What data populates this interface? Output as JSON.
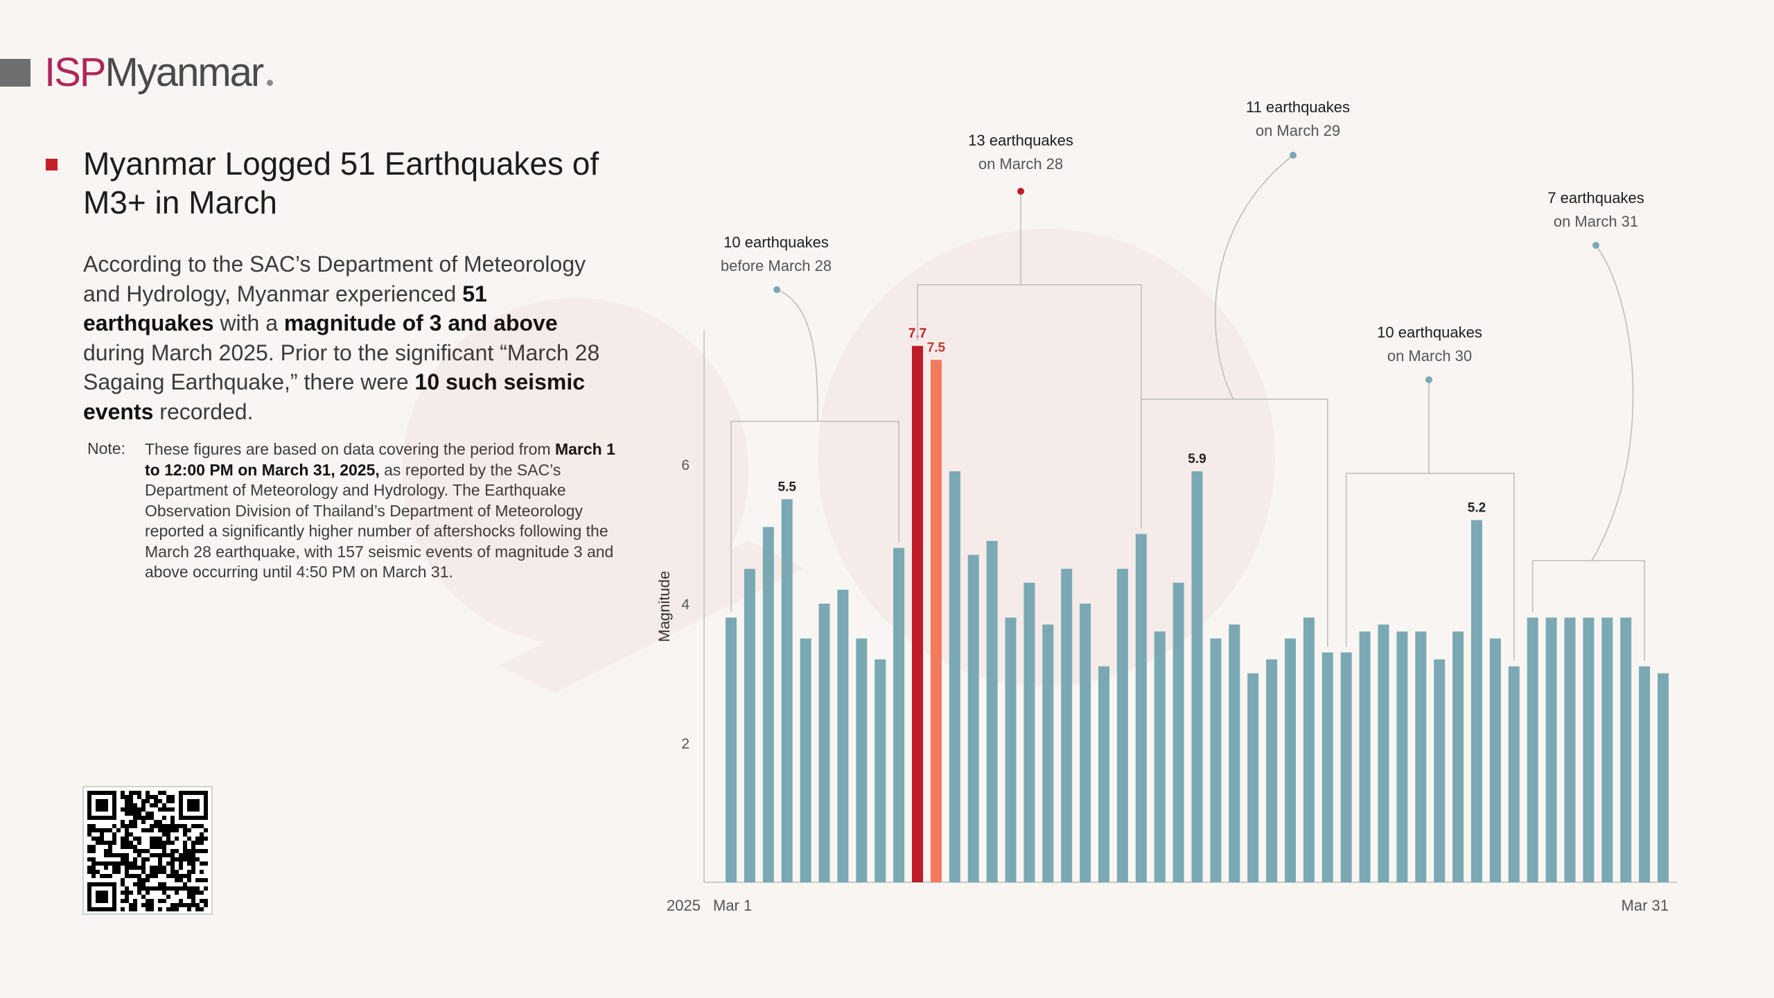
{
  "brand": {
    "isp": "ISP",
    "name": "Myanmar"
  },
  "headline": "Myanmar Logged 51 Earthquakes of M3+ in March",
  "lead": {
    "p1": "According to the SAC’s Department of Meteorology and Hydrology, Myanmar experienced ",
    "b1": "51 earthquakes",
    "p2": " with a ",
    "b2": "magnitude of 3 and above",
    "p3": " during March 2025. Prior to the significant “March 28 Sagaing Earthquake,” there were ",
    "b3": "10 such seismic events",
    "p4": " recorded."
  },
  "note": {
    "label": "Note:",
    "p1": "These figures are based on data covering the period from ",
    "b1": "March 1 to 12:00 PM on March 31, 2025,",
    "p2": " as reported by the SAC’s Department of Meteorology and Hydrology. The Earthquake Observation Division of Thailand’s Department of Meteorology reported a significantly higher number of aftershocks following the March 28 earthquake, with 157 seismic events of magnitude 3 and above occurring until 4:50 PM on March 31."
  },
  "colors": {
    "bar": "#7aa9b4",
    "main_quake": "#bf1d27",
    "aftershock_peak": "#f27a5e",
    "accent": "#c4202b",
    "brand": "#b0265c"
  },
  "chart_data": {
    "type": "bar",
    "ylabel": "Magnitude",
    "ylim": [
      0,
      8
    ],
    "yticks": [
      2,
      4,
      6
    ],
    "x_labels": {
      "year": "2025",
      "start": "Mar 1",
      "end": "Mar 31"
    },
    "grid": false,
    "values": [
      3.8,
      4.5,
      5.1,
      5.5,
      3.5,
      4.0,
      4.2,
      3.5,
      3.2,
      4.8,
      7.7,
      7.5,
      5.9,
      4.7,
      4.9,
      3.8,
      4.3,
      3.7,
      4.5,
      4.0,
      3.1,
      4.5,
      5.0,
      3.6,
      4.3,
      5.9,
      3.5,
      3.7,
      3.0,
      3.2,
      3.5,
      3.8,
      3.3,
      3.3,
      3.6,
      3.7,
      3.6,
      3.6,
      3.2,
      3.6,
      5.2,
      3.5,
      3.1,
      3.8,
      3.8,
      3.8,
      3.8,
      3.8,
      3.8,
      3.1,
      3.0
    ],
    "highlights": {
      "main_quake_index": 10,
      "second_quake_index": 11
    },
    "value_labels": [
      {
        "index": 3,
        "text": "5.5"
      },
      {
        "index": 10,
        "text": "7.7"
      },
      {
        "index": 11,
        "text": "7.5"
      },
      {
        "index": 25,
        "text": "5.9"
      },
      {
        "index": 40,
        "text": "5.2"
      }
    ],
    "groups": [
      {
        "from": 0,
        "to": 9,
        "title": "10 earthquakes",
        "subtitle": "before March 28"
      },
      {
        "from": 10,
        "to": 22,
        "title": "13 earthquakes",
        "subtitle": "on March 28"
      },
      {
        "from": 22,
        "to": 32,
        "title": "11 earthquakes",
        "subtitle": "on March 29"
      },
      {
        "from": 33,
        "to": 42,
        "title": "10 earthquakes",
        "subtitle": "on March 30"
      },
      {
        "from": 43,
        "to": 49,
        "title": "7 earthquakes",
        "subtitle": "on March 31"
      }
    ]
  }
}
